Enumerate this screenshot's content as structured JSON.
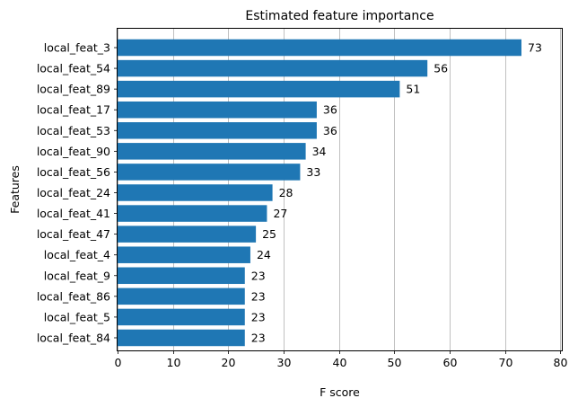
{
  "chart_data": {
    "type": "bar",
    "orientation": "horizontal",
    "title": "Estimated feature importance",
    "xlabel": "F score",
    "ylabel": "Features",
    "xlim": [
      0,
      80.3
    ],
    "xticks": [
      0,
      10,
      20,
      30,
      40,
      50,
      60,
      70,
      80
    ],
    "grid": "vertical",
    "bar_color": "#1f77b4",
    "categories": [
      "local_feat_3",
      "local_feat_54",
      "local_feat_89",
      "local_feat_17",
      "local_feat_53",
      "local_feat_90",
      "local_feat_56",
      "local_feat_24",
      "local_feat_41",
      "local_feat_47",
      "local_feat_4",
      "local_feat_9",
      "local_feat_86",
      "local_feat_5",
      "local_feat_84"
    ],
    "values": [
      73,
      56,
      51,
      36,
      36,
      34,
      33,
      28,
      27,
      25,
      24,
      23,
      23,
      23,
      23
    ]
  }
}
